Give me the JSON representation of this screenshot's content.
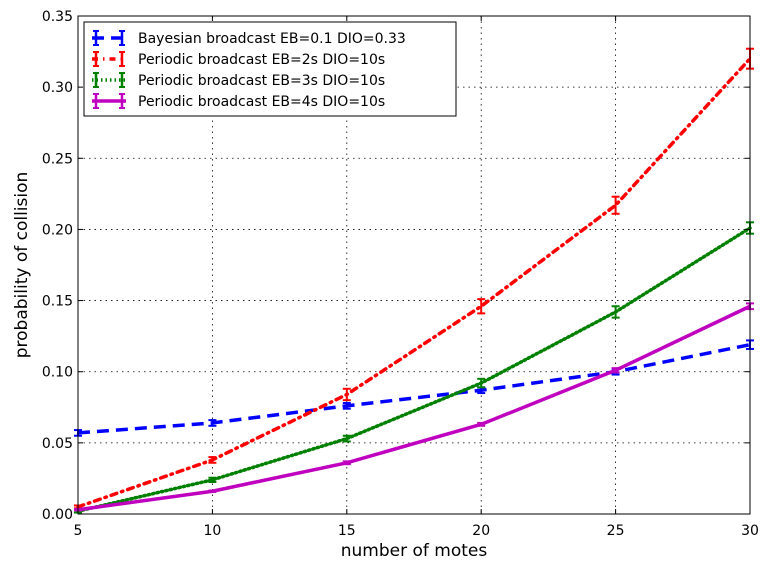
{
  "chart_data": {
    "type": "line",
    "title": "",
    "xlabel": "number of motes",
    "ylabel": "probability of collision",
    "xlim": [
      5,
      30
    ],
    "ylim": [
      0,
      0.35
    ],
    "x_ticks": [
      5,
      10,
      15,
      20,
      25,
      30
    ],
    "y_ticks": [
      0.0,
      0.05,
      0.1,
      0.15,
      0.2,
      0.25,
      0.3,
      0.35
    ],
    "x_tick_labels": [
      "5",
      "10",
      "15",
      "20",
      "25",
      "30"
    ],
    "y_tick_labels": [
      "0.00",
      "0.05",
      "0.10",
      "0.15",
      "0.20",
      "0.25",
      "0.30",
      "0.35"
    ],
    "grid": true,
    "legend_position": "top-left",
    "x": [
      5,
      10,
      15,
      20,
      25,
      30
    ],
    "series": [
      {
        "name": "Bayesian broadcast EB=0.1 DIO=0.33",
        "color": "#0000ff",
        "line_style": "dashed",
        "values": [
          0.057,
          0.064,
          0.076,
          0.087,
          0.1,
          0.119
        ],
        "errors": [
          0.002,
          0.002,
          0.002,
          0.002,
          0.002,
          0.003
        ]
      },
      {
        "name": "Periodic broadcast EB=2s DIO=10s",
        "color": "#ff0000",
        "line_style": "dashdot",
        "values": [
          0.005,
          0.038,
          0.084,
          0.146,
          0.217,
          0.32
        ],
        "errors": [
          0.001,
          0.002,
          0.004,
          0.005,
          0.006,
          0.007
        ]
      },
      {
        "name": "Periodic broadcast EB=3s DIO=10s",
        "color": "#008000",
        "line_style": "dotted",
        "values": [
          0.002,
          0.024,
          0.053,
          0.092,
          0.142,
          0.201
        ],
        "errors": [
          0.001,
          0.0015,
          0.002,
          0.003,
          0.004,
          0.004
        ]
      },
      {
        "name": "Periodic broadcast EB=4s DIO=10s",
        "color": "#bf00bf",
        "line_style": "solid",
        "values": [
          0.003,
          0.016,
          0.036,
          0.063,
          0.101,
          0.146
        ],
        "errors": [
          0.0005,
          0.0005,
          0.001,
          0.001,
          0.0015,
          0.002
        ]
      }
    ]
  }
}
